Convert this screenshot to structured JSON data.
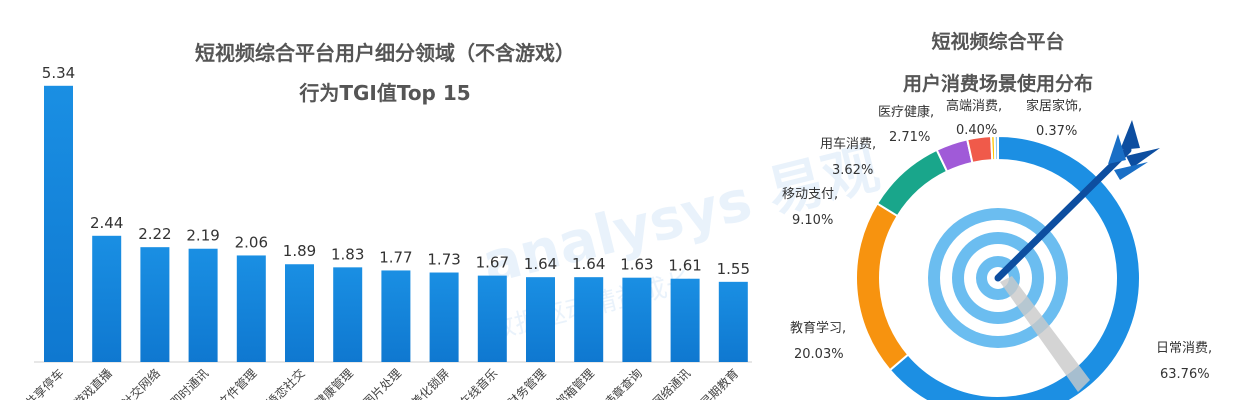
{
  "watermark": {
    "brand": "analysys 易观",
    "tagline": "数据驱动精益成长"
  },
  "chart_data": [
    {
      "type": "bar",
      "title_lines": [
        "短视频综合平台用户细分领域（不含游戏）",
        "行为TGI值Top 15"
      ],
      "categories": [
        "共享停车",
        "游戏直播",
        "社交网络",
        "即时通讯",
        "文件管理",
        "婚恋社交",
        "健康管理",
        "图片处理",
        "美化锁屏",
        "在线音乐",
        "财务管理",
        "邮箱管理",
        "违章查询",
        "网络通讯",
        "早期教育"
      ],
      "values": [
        5.34,
        2.44,
        2.22,
        2.19,
        2.06,
        1.89,
        1.83,
        1.77,
        1.73,
        1.67,
        1.64,
        1.64,
        1.63,
        1.61,
        1.55
      ],
      "ylim": [
        0,
        5.8
      ],
      "grid": false,
      "color": "#1a8fe3"
    },
    {
      "type": "pie",
      "variant": "donut",
      "title_lines": [
        "短视频综合平台",
        "用户消费场景使用分布"
      ],
      "slices": [
        {
          "name": "日常消费",
          "value": 63.76,
          "pct_label": "63.76%",
          "color": "#1c8fe3"
        },
        {
          "name": "教育学习",
          "value": 20.03,
          "pct_label": "20.03%",
          "color": "#f7930f"
        },
        {
          "name": "移动支付",
          "value": 9.1,
          "pct_label": "9.10%",
          "color": "#19a68b"
        },
        {
          "name": "用车消费",
          "value": 3.62,
          "pct_label": "3.62%",
          "color": "#a05ad8"
        },
        {
          "name": "医疗健康",
          "value": 2.71,
          "pct_label": "2.71%",
          "color": "#f05a4a"
        },
        {
          "name": "高端消费",
          "value": 0.4,
          "pct_label": "0.40%",
          "color": "#ffc400"
        },
        {
          "name": "家居家饰",
          "value": 0.37,
          "pct_label": "0.37%",
          "color": "#8ec7ef"
        }
      ]
    }
  ]
}
